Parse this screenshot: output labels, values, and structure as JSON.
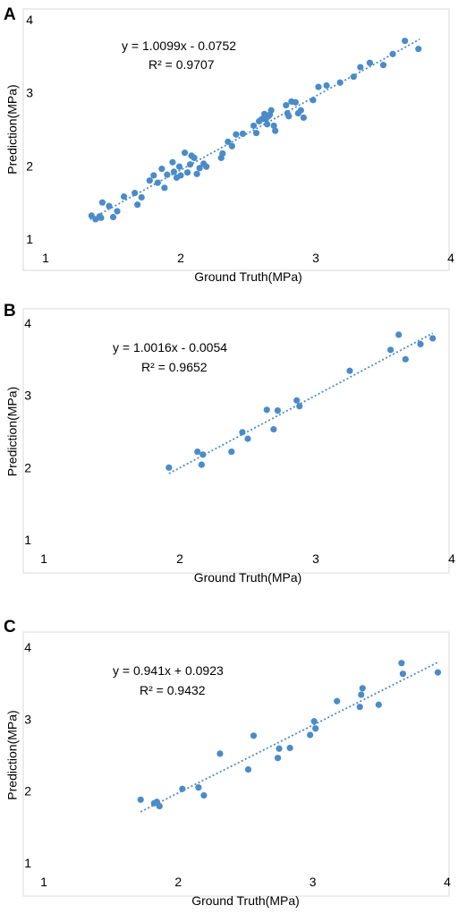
{
  "chart_data": [
    {
      "panel_label": "A",
      "type": "scatter",
      "xlabel": "Ground Truth(MPa)",
      "ylabel": "Prediction(MPa)",
      "xlim": [
        1,
        4
      ],
      "ylim": [
        1,
        4
      ],
      "xticks": [
        "1",
        "2",
        "3",
        "4"
      ],
      "yticks": [
        "1",
        "2",
        "3",
        "4"
      ],
      "equation": "y = 1.0099x - 0.0752",
      "r2": "R² = 0.9707",
      "trendline": {
        "slope": 1.0099,
        "intercept": -0.0752,
        "x_range": [
          1.33,
          3.77
        ]
      },
      "marker_color": "#4a8bc8",
      "trendline_color": "#4a8bc8",
      "points": [
        [
          1.34,
          1.32
        ],
        [
          1.37,
          1.27
        ],
        [
          1.4,
          1.31
        ],
        [
          1.41,
          1.29
        ],
        [
          1.42,
          1.5
        ],
        [
          1.47,
          1.45
        ],
        [
          1.5,
          1.3
        ],
        [
          1.53,
          1.38
        ],
        [
          1.58,
          1.58
        ],
        [
          1.66,
          1.63
        ],
        [
          1.68,
          1.47
        ],
        [
          1.71,
          1.57
        ],
        [
          1.77,
          1.8
        ],
        [
          1.8,
          1.87
        ],
        [
          1.83,
          1.77
        ],
        [
          1.86,
          1.96
        ],
        [
          1.88,
          1.7
        ],
        [
          1.9,
          1.88
        ],
        [
          1.94,
          2.05
        ],
        [
          1.95,
          1.92
        ],
        [
          1.97,
          1.84
        ],
        [
          1.99,
          1.99
        ],
        [
          2.0,
          1.87
        ],
        [
          2.03,
          2.18
        ],
        [
          2.05,
          1.91
        ],
        [
          2.07,
          2.02
        ],
        [
          2.08,
          2.14
        ],
        [
          2.1,
          2.11
        ],
        [
          2.12,
          1.89
        ],
        [
          2.14,
          1.97
        ],
        [
          2.17,
          2.03
        ],
        [
          2.19,
          1.99
        ],
        [
          2.3,
          2.11
        ],
        [
          2.31,
          2.17
        ],
        [
          2.35,
          2.33
        ],
        [
          2.38,
          2.27
        ],
        [
          2.41,
          2.43
        ],
        [
          2.46,
          2.44
        ],
        [
          2.54,
          2.55
        ],
        [
          2.56,
          2.45
        ],
        [
          2.58,
          2.61
        ],
        [
          2.6,
          2.64
        ],
        [
          2.62,
          2.71
        ],
        [
          2.63,
          2.64
        ],
        [
          2.64,
          2.57
        ],
        [
          2.65,
          2.68
        ],
        [
          2.66,
          2.7
        ],
        [
          2.67,
          2.76
        ],
        [
          2.69,
          2.55
        ],
        [
          2.7,
          2.48
        ],
        [
          2.78,
          2.83
        ],
        [
          2.79,
          2.72
        ],
        [
          2.8,
          2.68
        ],
        [
          2.82,
          2.88
        ],
        [
          2.85,
          2.87
        ],
        [
          2.87,
          2.72
        ],
        [
          2.89,
          2.76
        ],
        [
          2.91,
          2.66
        ],
        [
          2.98,
          2.9
        ],
        [
          3.02,
          3.08
        ],
        [
          3.08,
          3.1
        ],
        [
          3.18,
          3.14
        ],
        [
          3.28,
          3.22
        ],
        [
          3.33,
          3.35
        ],
        [
          3.4,
          3.41
        ],
        [
          3.5,
          3.38
        ],
        [
          3.57,
          3.53
        ],
        [
          3.66,
          3.71
        ],
        [
          3.76,
          3.6
        ]
      ]
    },
    {
      "panel_label": "B",
      "type": "scatter",
      "xlabel": "Ground Truth(MPa)",
      "ylabel": "Prediction(MPa)",
      "xlim": [
        1,
        4
      ],
      "ylim": [
        1,
        4
      ],
      "xticks": [
        "1",
        "2",
        "3",
        "4"
      ],
      "yticks": [
        "1",
        "2",
        "3",
        "4"
      ],
      "equation": "y = 1.0016x - 0.0054",
      "r2": "R² = 0.9652",
      "trendline": {
        "slope": 1.0016,
        "intercept": -0.0054,
        "x_range": [
          1.92,
          3.86
        ]
      },
      "marker_color": "#4a8bc8",
      "trendline_color": "#4a8bc8",
      "points": [
        [
          1.92,
          2.0
        ],
        [
          2.13,
          2.22
        ],
        [
          2.16,
          2.04
        ],
        [
          2.17,
          2.18
        ],
        [
          2.38,
          2.22
        ],
        [
          2.46,
          2.49
        ],
        [
          2.5,
          2.4
        ],
        [
          2.64,
          2.8
        ],
        [
          2.69,
          2.53
        ],
        [
          2.72,
          2.79
        ],
        [
          2.86,
          2.93
        ],
        [
          2.88,
          2.85
        ],
        [
          3.25,
          3.34
        ],
        [
          3.55,
          3.63
        ],
        [
          3.61,
          3.84
        ],
        [
          3.66,
          3.5
        ],
        [
          3.77,
          3.71
        ],
        [
          3.86,
          3.79
        ]
      ]
    },
    {
      "panel_label": "C",
      "type": "scatter",
      "xlabel": "Ground Truth(MPa)",
      "ylabel": "Prediction(MPa)",
      "xlim": [
        1,
        4
      ],
      "ylim": [
        1,
        4
      ],
      "xticks": [
        "1",
        "2",
        "3",
        "4"
      ],
      "yticks": [
        "1",
        "2",
        "3",
        "4"
      ],
      "equation": "y = 0.941x + 0.0923",
      "r2": "R² = 0.9432",
      "trendline": {
        "slope": 0.941,
        "intercept": 0.0923,
        "x_range": [
          1.72,
          3.93
        ]
      },
      "marker_color": "#4a8bc8",
      "trendline_color": "#4a8bc8",
      "points": [
        [
          1.72,
          1.88
        ],
        [
          1.82,
          1.83
        ],
        [
          1.84,
          1.85
        ],
        [
          1.86,
          1.79
        ],
        [
          2.03,
          2.03
        ],
        [
          2.15,
          2.05
        ],
        [
          2.19,
          1.94
        ],
        [
          2.31,
          2.52
        ],
        [
          2.52,
          2.3
        ],
        [
          2.56,
          2.77
        ],
        [
          2.74,
          2.46
        ],
        [
          2.75,
          2.59
        ],
        [
          2.83,
          2.6
        ],
        [
          2.98,
          2.78
        ],
        [
          3.01,
          2.97
        ],
        [
          3.02,
          2.87
        ],
        [
          3.18,
          3.25
        ],
        [
          3.35,
          3.17
        ],
        [
          3.36,
          3.34
        ],
        [
          3.37,
          3.43
        ],
        [
          3.49,
          3.2
        ],
        [
          3.66,
          3.78
        ],
        [
          3.67,
          3.63
        ],
        [
          3.93,
          3.65
        ]
      ]
    }
  ]
}
